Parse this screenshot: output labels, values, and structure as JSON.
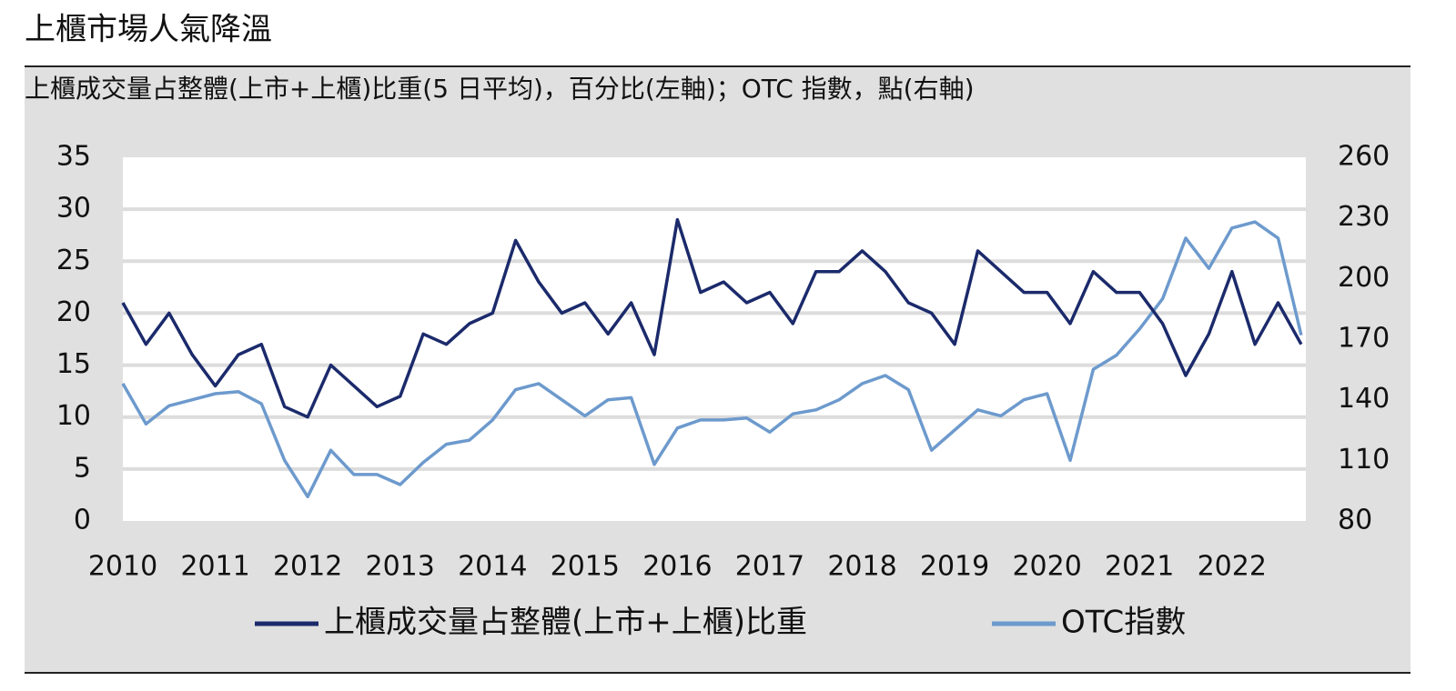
{
  "chart_data": {
    "type": "line",
    "title": "上櫃市場人氣降溫",
    "subtitle": "上櫃成交量占整體(上市+上櫃)比重(5 日平均)，百分比(左軸)；OTC 指數，點(右軸)",
    "x": [
      2010,
      2010.25,
      2010.5,
      2010.75,
      2011,
      2011.25,
      2011.5,
      2011.75,
      2012,
      2012.25,
      2012.5,
      2012.75,
      2013,
      2013.25,
      2013.5,
      2013.75,
      2014,
      2014.25,
      2014.5,
      2014.75,
      2015,
      2015.25,
      2015.5,
      2015.75,
      2016,
      2016.25,
      2016.5,
      2016.75,
      2017,
      2017.25,
      2017.5,
      2017.75,
      2018,
      2018.25,
      2018.5,
      2018.75,
      2019,
      2019.25,
      2019.5,
      2019.75,
      2020,
      2020.25,
      2020.5,
      2020.75,
      2021,
      2021.25,
      2021.5,
      2021.75,
      2022,
      2022.25,
      2022.5,
      2022.75
    ],
    "series": [
      {
        "name": "上櫃成交量占整體(上市+上櫃)比重",
        "color": "#1b2a6b",
        "values": [
          21,
          17,
          20,
          16,
          13,
          16,
          17,
          11,
          10,
          15,
          13,
          11,
          12,
          18,
          17,
          19,
          20,
          27,
          23,
          20,
          21,
          18,
          21,
          16,
          29,
          22,
          23,
          21,
          22,
          19,
          24,
          24,
          26,
          24,
          21,
          20,
          17,
          26,
          24,
          22,
          22,
          19,
          24,
          22,
          22,
          19,
          14,
          18,
          24,
          17,
          21,
          17
        ]
      },
      {
        "name": "OTC指數",
        "color": "#6d9acd",
        "axis": "y2",
        "values": [
          148,
          128,
          137,
          140,
          143,
          144,
          138,
          110,
          92,
          115,
          103,
          103,
          98,
          109,
          118,
          120,
          130,
          145,
          148,
          140,
          132,
          140,
          141,
          108,
          126,
          130,
          130,
          131,
          124,
          133,
          135,
          140,
          148,
          152,
          145,
          115,
          125,
          135,
          132,
          140,
          143,
          110,
          155,
          162,
          175,
          190,
          220,
          205,
          225,
          228,
          220,
          172
        ]
      }
    ],
    "xlim": [
      2010,
      2022.8
    ],
    "xticks": [
      2010,
      2011,
      2012,
      2013,
      2014,
      2015,
      2016,
      2017,
      2018,
      2019,
      2020,
      2021,
      2022
    ],
    "ylim": [
      0,
      35
    ],
    "yticks": [
      0,
      5,
      10,
      15,
      20,
      25,
      30,
      35
    ],
    "y2lim": [
      80,
      260
    ],
    "y2ticks": [
      80,
      110,
      140,
      170,
      200,
      230,
      260
    ],
    "grid": true
  }
}
